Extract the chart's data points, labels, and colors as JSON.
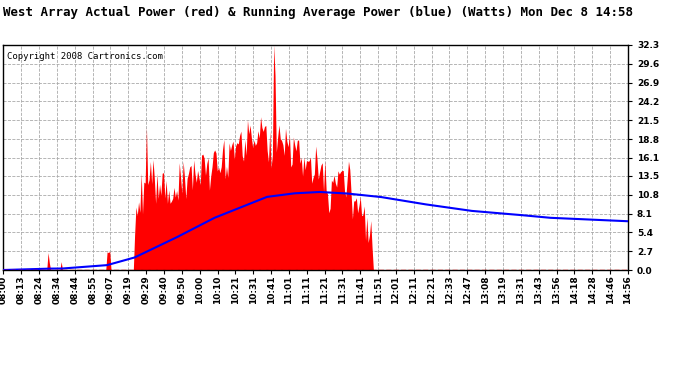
{
  "title": "West Array Actual Power (red) & Running Average Power (blue) (Watts) Mon Dec 8 14:58",
  "copyright": "Copyright 2008 Cartronics.com",
  "ytick_labels": [
    "0.0",
    "2.7",
    "5.4",
    "8.1",
    "10.8",
    "13.5",
    "16.1",
    "18.8",
    "21.5",
    "24.2",
    "26.9",
    "29.6",
    "32.3"
  ],
  "ytick_vals": [
    0.0,
    2.7,
    5.4,
    8.1,
    10.8,
    13.5,
    16.1,
    18.8,
    21.5,
    24.2,
    26.9,
    29.6,
    32.3
  ],
  "ymax": 32.3,
  "ymin": 0.0,
  "x_labels": [
    "08:00",
    "08:13",
    "08:24",
    "08:34",
    "08:44",
    "08:55",
    "09:07",
    "09:19",
    "09:29",
    "09:40",
    "09:50",
    "10:00",
    "10:10",
    "10:21",
    "10:31",
    "10:41",
    "11:01",
    "11:11",
    "11:21",
    "11:31",
    "11:41",
    "11:51",
    "12:01",
    "12:11",
    "12:21",
    "12:33",
    "12:47",
    "13:08",
    "13:19",
    "13:31",
    "13:43",
    "13:56",
    "14:18",
    "14:28",
    "14:46",
    "14:56"
  ],
  "bg_color": "#ffffff",
  "grid_color": "#aaaaaa",
  "red_color": "#ff0000",
  "blue_color": "#0000ff",
  "title_font_size": 9,
  "copyright_font_size": 6.5,
  "tick_font_size": 6.5
}
